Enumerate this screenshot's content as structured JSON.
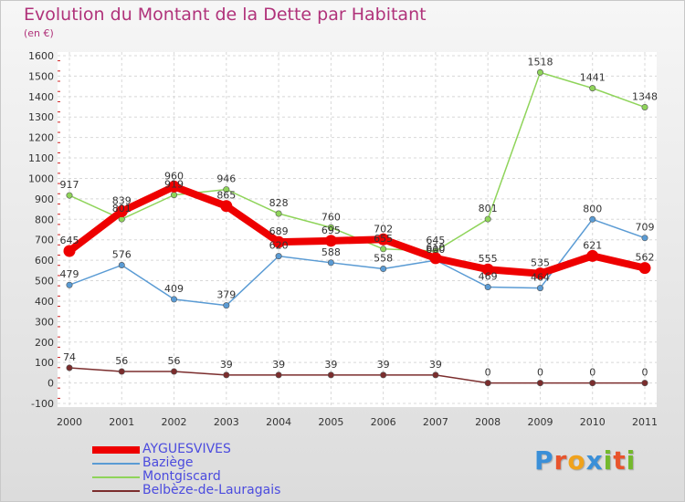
{
  "header": {
    "title": "Evolution du Montant de la Dette par Habitant",
    "unit": "(en €)"
  },
  "logo": {
    "letters": [
      "P",
      "r",
      "o",
      "x",
      "i",
      "t",
      "i"
    ],
    "colors": [
      "#3a8fd8",
      "#e8542c",
      "#f0a21c",
      "#3a8fd8",
      "#74b92c",
      "#e8542c",
      "#74b92c"
    ]
  },
  "chart_data": {
    "type": "line",
    "title": "Evolution du Montant de la Dette par Habitant",
    "ylabel": "(en €)",
    "xlabel": "",
    "x": [
      "2000",
      "2001",
      "2002",
      "2003",
      "2004",
      "2005",
      "2006",
      "2007",
      "2008",
      "2009",
      "2010",
      "2011"
    ],
    "ylim": [
      -100,
      1600
    ],
    "yticks": [
      "-100",
      "0",
      "100",
      "200",
      "300",
      "400",
      "500",
      "600",
      "700",
      "800",
      "900",
      "1000",
      "1100",
      "1200",
      "1300",
      "1400",
      "1500",
      "1600"
    ],
    "grid": "horizontal dashed",
    "legend_position": "bottom-left",
    "series": [
      {
        "name": "AYGUESVIVES",
        "color": "#ee0000",
        "values": [
          645,
          839,
          960,
          865,
          689,
          695,
          702,
          610,
          555,
          535,
          621,
          562
        ],
        "labels": [
          "645",
          "839",
          "960",
          "865",
          "689",
          "695",
          "702",
          "610",
          "555",
          "535",
          "621",
          "562"
        ]
      },
      {
        "name": "Baziège",
        "color": "#5a9bd4",
        "values": [
          479,
          576,
          409,
          379,
          620,
          588,
          558,
          600,
          469,
          464,
          800,
          709
        ],
        "labels": [
          "479",
          "576",
          "409",
          "379",
          "620",
          "588",
          "558",
          "600",
          "469",
          "464",
          "800",
          "709"
        ]
      },
      {
        "name": "Montgiscard",
        "color": "#8fd45a",
        "values": [
          917,
          801,
          919,
          946,
          828,
          760,
          655,
          645,
          801,
          1518,
          1441,
          1348
        ],
        "labels": [
          "917",
          "801",
          "919",
          "946",
          "828",
          "760",
          "655",
          "645",
          "801",
          "1518",
          "1441",
          "1348"
        ]
      },
      {
        "name": "Belbèze-de-Lauragais",
        "color": "#7b2d2d",
        "values": [
          74,
          56,
          56,
          39,
          39,
          39,
          39,
          39,
          0,
          0,
          0,
          0
        ],
        "labels": [
          "74",
          "56",
          "56",
          "39",
          "39",
          "39",
          "39",
          "39",
          "0",
          "0",
          "0",
          "0"
        ]
      }
    ]
  }
}
